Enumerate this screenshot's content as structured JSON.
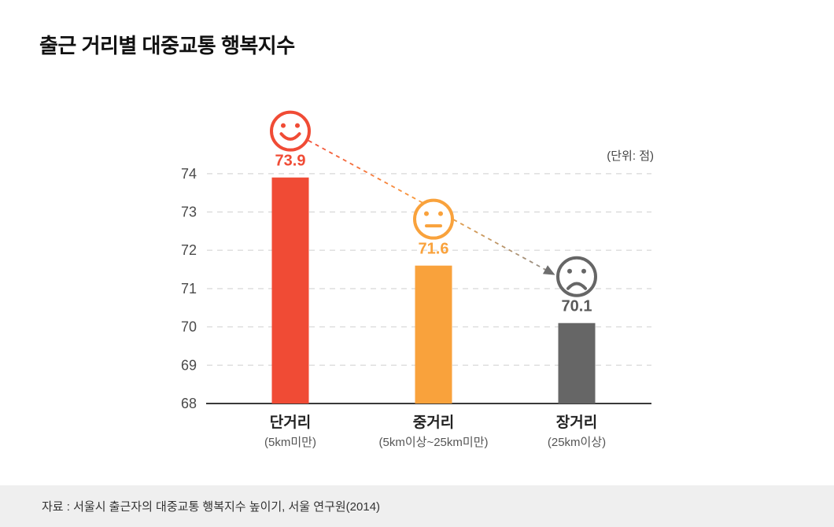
{
  "chart_data": {
    "type": "bar",
    "title": "출근 거리별 대중교통 행복지수",
    "unit_label": "(단위: 점)",
    "categories": [
      "단거리",
      "중거리",
      "장거리"
    ],
    "category_sublabels": [
      "(5km미만)",
      "(5km이상~25km미만)",
      "(25km이상)"
    ],
    "values": [
      73.9,
      71.6,
      70.1
    ],
    "value_labels": [
      "73.9",
      "71.6",
      "70.1"
    ],
    "bar_colors": [
      "#f04b35",
      "#f9a23c",
      "#666666"
    ],
    "face_icons": [
      "happy-face-icon",
      "neutral-face-icon",
      "sad-face-icon"
    ],
    "trend_arrow": {
      "style": "dashed",
      "from": "happy-face-icon",
      "to": "sad-face-icon",
      "gradient_colors": [
        "#f2503a",
        "#f9a23c",
        "#8c8c8c"
      ],
      "arrowhead_color": "#6e6e6e"
    },
    "yticks": [
      68,
      69,
      70,
      71,
      72,
      73,
      74
    ],
    "ylim": [
      68,
      74.6
    ],
    "grid": "horizontal dashed, solid baseline at 68",
    "legend": "none",
    "source": "자료 : 서울시 출근자의 대중교통 행복지수 높이기, 서울 연구원(2014)"
  }
}
